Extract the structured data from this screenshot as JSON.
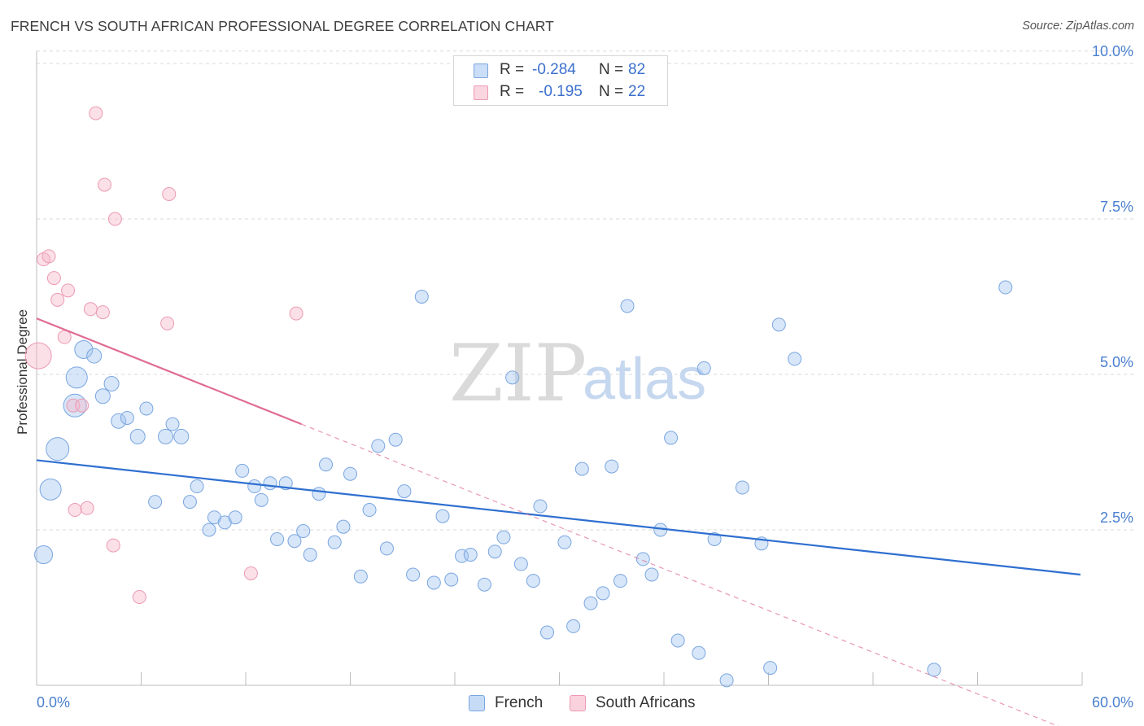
{
  "chart_data": {
    "type": "scatter",
    "title": "FRENCH VS SOUTH AFRICAN PROFESSIONAL DEGREE CORRELATION CHART",
    "source": "Source: ZipAtlas.com",
    "xlabel": "",
    "ylabel": "Professional Degree",
    "xlim": [
      0,
      60
    ],
    "ylim": [
      0,
      10.2
    ],
    "x_tick_labels": [
      "0.0%",
      "60.0%"
    ],
    "y_ticks": [
      2.5,
      5.0,
      7.5,
      10.0
    ],
    "y_tick_labels": [
      "2.5%",
      "5.0%",
      "7.5%",
      "10.0%"
    ],
    "grid": true,
    "legend_position": "top-center",
    "series": [
      {
        "name": "French",
        "color": "#7aa6e0",
        "line_color": "#2f6fd0",
        "R": "-0.284",
        "N": "82",
        "trend": {
          "x1": 0,
          "y1": 3.62,
          "x2": 59.9,
          "y2": 1.78
        },
        "points": [
          [
            0.4,
            2.1,
            11
          ],
          [
            0.8,
            3.15,
            13
          ],
          [
            1.2,
            3.8,
            14
          ],
          [
            2.2,
            4.5,
            14
          ],
          [
            2.3,
            4.95,
            13
          ],
          [
            2.7,
            5.4,
            11
          ],
          [
            3.3,
            5.3,
            9
          ],
          [
            3.8,
            4.65,
            9
          ],
          [
            4.3,
            4.85,
            9
          ],
          [
            4.7,
            4.25,
            9
          ],
          [
            5.2,
            4.3,
            8
          ],
          [
            5.8,
            4.0,
            9
          ],
          [
            6.3,
            4.45,
            8
          ],
          [
            6.8,
            2.95,
            8
          ],
          [
            7.4,
            4.0,
            9
          ],
          [
            7.8,
            4.2,
            8
          ],
          [
            8.3,
            4.0,
            9
          ],
          [
            8.8,
            2.95,
            8
          ],
          [
            9.2,
            3.2,
            8
          ],
          [
            9.9,
            2.5,
            8
          ],
          [
            10.2,
            2.7,
            8
          ],
          [
            10.8,
            2.62,
            8
          ],
          [
            11.4,
            2.7,
            8
          ],
          [
            11.8,
            3.45,
            8
          ],
          [
            12.5,
            3.2,
            8
          ],
          [
            12.9,
            2.98,
            8
          ],
          [
            13.4,
            3.25,
            8
          ],
          [
            13.8,
            2.35,
            8
          ],
          [
            14.3,
            3.25,
            8
          ],
          [
            14.8,
            2.32,
            8
          ],
          [
            15.3,
            2.48,
            8
          ],
          [
            15.7,
            2.1,
            8
          ],
          [
            16.2,
            3.08,
            8
          ],
          [
            16.6,
            3.55,
            8
          ],
          [
            17.1,
            2.3,
            8
          ],
          [
            17.6,
            2.55,
            8
          ],
          [
            18.0,
            3.4,
            8
          ],
          [
            18.6,
            1.75,
            8
          ],
          [
            19.1,
            2.82,
            8
          ],
          [
            19.6,
            3.85,
            8
          ],
          [
            20.1,
            2.2,
            8
          ],
          [
            20.6,
            3.95,
            8
          ],
          [
            21.1,
            3.12,
            8
          ],
          [
            21.6,
            1.78,
            8
          ],
          [
            22.1,
            6.25,
            8
          ],
          [
            22.8,
            1.65,
            8
          ],
          [
            23.3,
            2.72,
            8
          ],
          [
            23.8,
            1.7,
            8
          ],
          [
            24.4,
            2.08,
            8
          ],
          [
            24.9,
            2.1,
            8
          ],
          [
            25.7,
            1.62,
            8
          ],
          [
            26.3,
            2.15,
            8
          ],
          [
            26.8,
            2.38,
            8
          ],
          [
            27.3,
            4.95,
            8
          ],
          [
            27.8,
            1.95,
            8
          ],
          [
            28.5,
            1.68,
            8
          ],
          [
            28.9,
            2.88,
            8
          ],
          [
            29.3,
            0.85,
            8
          ],
          [
            30.3,
            2.3,
            8
          ],
          [
            30.8,
            0.95,
            8
          ],
          [
            31.3,
            3.48,
            8
          ],
          [
            31.8,
            1.32,
            8
          ],
          [
            32.5,
            1.48,
            8
          ],
          [
            33.0,
            3.52,
            8
          ],
          [
            33.5,
            1.68,
            8
          ],
          [
            33.9,
            6.1,
            8
          ],
          [
            34.8,
            2.03,
            8
          ],
          [
            35.3,
            1.78,
            8
          ],
          [
            35.8,
            2.5,
            8
          ],
          [
            36.4,
            3.98,
            8
          ],
          [
            36.8,
            0.72,
            8
          ],
          [
            38.0,
            0.52,
            8
          ],
          [
            38.3,
            5.1,
            8
          ],
          [
            38.9,
            2.35,
            8
          ],
          [
            39.6,
            0.08,
            8
          ],
          [
            40.5,
            3.18,
            8
          ],
          [
            41.6,
            2.28,
            8
          ],
          [
            42.1,
            0.28,
            8
          ],
          [
            42.6,
            5.8,
            8
          ],
          [
            43.5,
            5.25,
            8
          ],
          [
            51.5,
            0.25,
            8
          ],
          [
            55.6,
            6.4,
            8
          ]
        ]
      },
      {
        "name": "South Africans",
        "color": "#ec9ab3",
        "line_color": "#e06c94",
        "R": "-0.195",
        "N": "22",
        "trend": {
          "x1": 0,
          "y1": 5.9,
          "x2": 15.2,
          "y2": 4.2
        },
        "trend_dashed": {
          "x1": 15.2,
          "y1": 4.2,
          "x2": 59.9,
          "y2": -0.8
        },
        "points": [
          [
            0.1,
            5.3,
            16
          ],
          [
            0.4,
            6.85,
            8
          ],
          [
            0.7,
            6.9,
            8
          ],
          [
            1.0,
            6.55,
            8
          ],
          [
            1.2,
            6.2,
            8
          ],
          [
            1.8,
            6.35,
            8
          ],
          [
            1.6,
            5.6,
            8
          ],
          [
            2.1,
            4.5,
            8
          ],
          [
            2.6,
            4.5,
            8
          ],
          [
            3.1,
            6.05,
            8
          ],
          [
            3.4,
            9.2,
            8
          ],
          [
            3.8,
            6.0,
            8
          ],
          [
            3.9,
            8.05,
            8
          ],
          [
            4.5,
            7.5,
            8
          ],
          [
            2.2,
            2.82,
            8
          ],
          [
            2.9,
            2.85,
            8
          ],
          [
            4.4,
            2.25,
            8
          ],
          [
            5.9,
            1.42,
            8
          ],
          [
            7.5,
            5.82,
            8
          ],
          [
            7.6,
            7.9,
            8
          ],
          [
            12.3,
            1.8,
            8
          ],
          [
            14.9,
            5.98,
            8
          ]
        ]
      }
    ]
  },
  "legend": {
    "rows": [
      {
        "r_label": "R =",
        "r_value": "-0.284",
        "n_label": "N =",
        "n_value": "82"
      },
      {
        "r_label": "R =",
        "r_value": "-0.195",
        "n_label": "N =",
        "n_value": "22"
      }
    ]
  },
  "bottom_legend": {
    "french": "French",
    "south_africans": "South Africans"
  },
  "watermark": {
    "zip": "ZIP",
    "atlas": "atlas"
  }
}
